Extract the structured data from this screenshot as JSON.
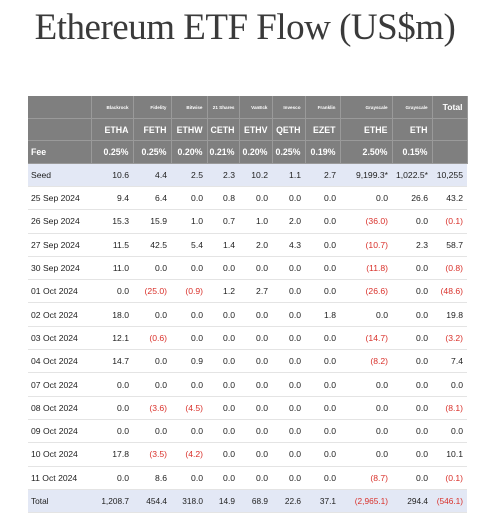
{
  "title": "Ethereum ETF Flow (US$m)",
  "colors": {
    "header_bg": "#7f7f7f",
    "highlight_row_bg": "#e3e8f5",
    "negative_text": "#d9302a"
  },
  "issuers": [
    "Blackrock",
    "Fidelity",
    "Bitwise",
    "21 Shares",
    "VanEck",
    "Invesco",
    "Franklin",
    "Grayscale",
    "Grayscale"
  ],
  "total_header": "Total",
  "tickers": [
    "ETHA",
    "FETH",
    "ETHW",
    "CETH",
    "ETHV",
    "QETH",
    "EZET",
    "ETHE",
    "ETH"
  ],
  "fee_label": "Fee",
  "fees": [
    "0.25%",
    "0.25%",
    "0.20%",
    "0.21%",
    "0.20%",
    "0.25%",
    "0.19%",
    "2.50%",
    "0.15%"
  ],
  "seed": {
    "label": "Seed",
    "values": [
      "10.6",
      "4.4",
      "2.5",
      "2.3",
      "10.2",
      "1.1",
      "2.7",
      "9,199.3*",
      "1,022.5*",
      "10,255"
    ]
  },
  "rows": [
    {
      "date": "25 Sep 2024",
      "values": [
        "9.4",
        "6.4",
        "0.0",
        "0.8",
        "0.0",
        "0.0",
        "0.0",
        "0.0",
        "26.6",
        "43.2"
      ]
    },
    {
      "date": "26 Sep 2024",
      "values": [
        "15.3",
        "15.9",
        "1.0",
        "0.7",
        "1.0",
        "2.0",
        "0.0",
        "(36.0)",
        "0.0",
        "(0.1)"
      ]
    },
    {
      "date": "27 Sep 2024",
      "values": [
        "11.5",
        "42.5",
        "5.4",
        "1.4",
        "2.0",
        "4.3",
        "0.0",
        "(10.7)",
        "2.3",
        "58.7"
      ]
    },
    {
      "date": "30 Sep 2024",
      "values": [
        "11.0",
        "0.0",
        "0.0",
        "0.0",
        "0.0",
        "0.0",
        "0.0",
        "(11.8)",
        "0.0",
        "(0.8)"
      ]
    },
    {
      "date": "01 Oct 2024",
      "values": [
        "0.0",
        "(25.0)",
        "(0.9)",
        "1.2",
        "2.7",
        "0.0",
        "0.0",
        "(26.6)",
        "0.0",
        "(48.6)"
      ]
    },
    {
      "date": "02 Oct 2024",
      "values": [
        "18.0",
        "0.0",
        "0.0",
        "0.0",
        "0.0",
        "0.0",
        "1.8",
        "0.0",
        "0.0",
        "19.8"
      ]
    },
    {
      "date": "03 Oct 2024",
      "values": [
        "12.1",
        "(0.6)",
        "0.0",
        "0.0",
        "0.0",
        "0.0",
        "0.0",
        "(14.7)",
        "0.0",
        "(3.2)"
      ]
    },
    {
      "date": "04 Oct 2024",
      "values": [
        "14.7",
        "0.0",
        "0.9",
        "0.0",
        "0.0",
        "0.0",
        "0.0",
        "(8.2)",
        "0.0",
        "7.4"
      ]
    },
    {
      "date": "07 Oct 2024",
      "values": [
        "0.0",
        "0.0",
        "0.0",
        "0.0",
        "0.0",
        "0.0",
        "0.0",
        "0.0",
        "0.0",
        "0.0"
      ]
    },
    {
      "date": "08 Oct 2024",
      "values": [
        "0.0",
        "(3.6)",
        "(4.5)",
        "0.0",
        "0.0",
        "0.0",
        "0.0",
        "0.0",
        "0.0",
        "(8.1)"
      ]
    },
    {
      "date": "09 Oct 2024",
      "values": [
        "0.0",
        "0.0",
        "0.0",
        "0.0",
        "0.0",
        "0.0",
        "0.0",
        "0.0",
        "0.0",
        "0.0"
      ]
    },
    {
      "date": "10 Oct 2024",
      "values": [
        "17.8",
        "(3.5)",
        "(4.2)",
        "0.0",
        "0.0",
        "0.0",
        "0.0",
        "0.0",
        "0.0",
        "10.1"
      ]
    },
    {
      "date": "11 Oct 2024",
      "values": [
        "0.0",
        "8.6",
        "0.0",
        "0.0",
        "0.0",
        "0.0",
        "0.0",
        "(8.7)",
        "0.0",
        "(0.1)"
      ]
    }
  ],
  "total": {
    "label": "Total",
    "values": [
      "1,208.7",
      "454.4",
      "318.0",
      "14.9",
      "68.9",
      "22.6",
      "37.1",
      "(2,965.1)",
      "294.4",
      "(546.1)"
    ]
  }
}
